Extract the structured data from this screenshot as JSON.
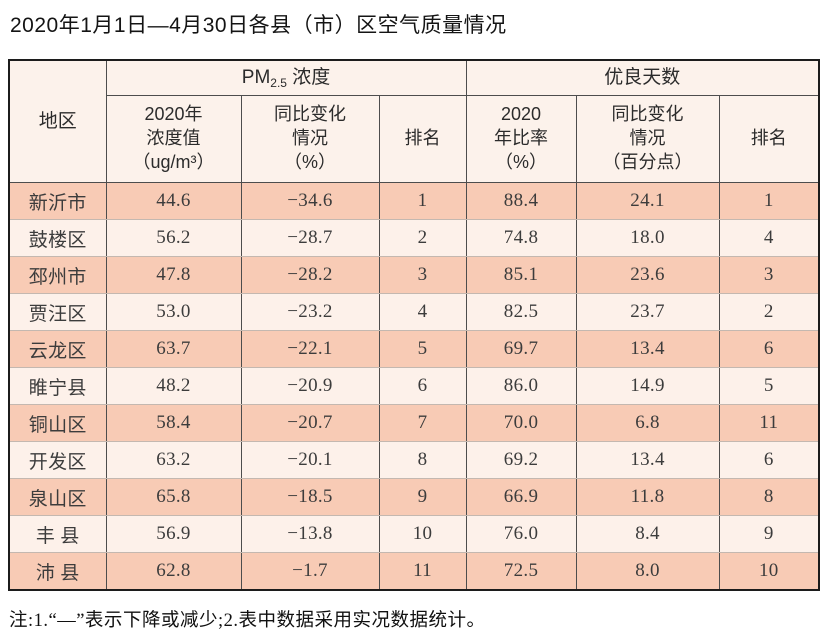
{
  "title": "2020年1月1日—4月30日各县（市）区空气质量情况",
  "table": {
    "header": {
      "region": "地区",
      "pm25": {
        "prefix": "PM",
        "sub": "2.5",
        "suffix": " 浓度"
      },
      "good_days": "优良天数",
      "pm25_value": [
        "2020年",
        "浓度值",
        "（ug/m³）"
      ],
      "pm25_change": [
        "同比变化",
        "情况",
        "（%）"
      ],
      "pm25_rank": "排名",
      "good_ratio": [
        "2020",
        "年比率",
        "（%）"
      ],
      "good_change": [
        "同比变化",
        "情况",
        "（百分点）"
      ],
      "good_rank": "排名"
    },
    "rows": [
      [
        "新沂市",
        "44.6",
        "−34.6",
        "1",
        "88.4",
        "24.1",
        "1"
      ],
      [
        "鼓楼区",
        "56.2",
        "−28.7",
        "2",
        "74.8",
        "18.0",
        "4"
      ],
      [
        "邳州市",
        "47.8",
        "−28.2",
        "3",
        "85.1",
        "23.6",
        "3"
      ],
      [
        "贾汪区",
        "53.0",
        "−23.2",
        "4",
        "82.5",
        "23.7",
        "2"
      ],
      [
        "云龙区",
        "63.7",
        "−22.1",
        "5",
        "69.7",
        "13.4",
        "6"
      ],
      [
        "睢宁县",
        "48.2",
        "−20.9",
        "6",
        "86.0",
        "14.9",
        "5"
      ],
      [
        "铜山区",
        "58.4",
        "−20.7",
        "7",
        "70.0",
        "6.8",
        "11"
      ],
      [
        "开发区",
        "63.2",
        "−20.1",
        "8",
        "69.2",
        "13.4",
        "6"
      ],
      [
        "泉山区",
        "65.8",
        "−18.5",
        "9",
        "66.9",
        "11.8",
        "8"
      ],
      [
        "丰 县",
        "56.9",
        "−13.8",
        "10",
        "76.0",
        "8.4",
        "9"
      ],
      [
        "沛 县",
        "62.8",
        "−1.7",
        "11",
        "72.5",
        "8.0",
        "10"
      ]
    ]
  },
  "footnote": "注:1.“—”表示下降或减少;2.表中数据采用实况数据统计。",
  "colors": {
    "row_odd": "#f8cbb5",
    "row_even": "#fdf1ea",
    "header_bg": "#fcf2eb",
    "grid_line": "#4d4d4d",
    "outer_border": "#1c1c1c",
    "row_divider": "#c4b8b0"
  }
}
